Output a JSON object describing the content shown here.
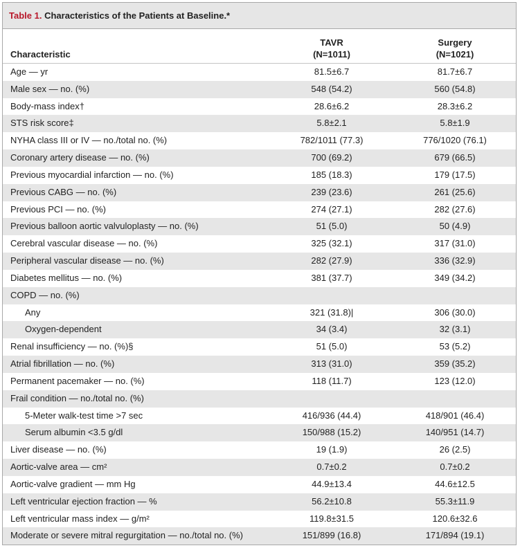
{
  "table": {
    "title_number": "Table 1.",
    "title_text": "Characteristics of the Patients at Baseline.*",
    "header": {
      "characteristic": "Characteristic",
      "tavr_label": "TAVR",
      "tavr_n": "(N=1011)",
      "surgery_label": "Surgery",
      "surgery_n": "(N=1021)"
    },
    "rows": [
      {
        "label": "Age — yr",
        "tavr": "81.5±6.7",
        "surgery": "81.7±6.7",
        "indent": false
      },
      {
        "label": "Male sex — no. (%)",
        "tavr": "548 (54.2)",
        "surgery": "560 (54.8)",
        "indent": false
      },
      {
        "label": "Body-mass index†",
        "tavr": "28.6±6.2",
        "surgery": "28.3±6.2",
        "indent": false
      },
      {
        "label": "STS risk score‡",
        "tavr": "5.8±2.1",
        "surgery": "5.8±1.9",
        "indent": false
      },
      {
        "label": "NYHA class III or IV — no./total no. (%)",
        "tavr": "782/1011 (77.3)",
        "surgery": "776/1020 (76.1)",
        "indent": false
      },
      {
        "label": "Coronary artery disease — no. (%)",
        "tavr": "700 (69.2)",
        "surgery": "679 (66.5)",
        "indent": false
      },
      {
        "label": "Previous myocardial infarction — no. (%)",
        "tavr": "185 (18.3)",
        "surgery": "179 (17.5)",
        "indent": false
      },
      {
        "label": "Previous CABG — no. (%)",
        "tavr": "239 (23.6)",
        "surgery": "261 (25.6)",
        "indent": false
      },
      {
        "label": "Previous PCI — no. (%)",
        "tavr": "274 (27.1)",
        "surgery": "282 (27.6)",
        "indent": false
      },
      {
        "label": "Previous balloon aortic valvuloplasty — no. (%)",
        "tavr": "51 (5.0)",
        "surgery": "50 (4.9)",
        "indent": false
      },
      {
        "label": "Cerebral vascular disease — no. (%)",
        "tavr": "325 (32.1)",
        "surgery": "317 (31.0)",
        "indent": false
      },
      {
        "label": "Peripheral vascular disease — no. (%)",
        "tavr": "282 (27.9)",
        "surgery": "336 (32.9)",
        "indent": false
      },
      {
        "label": "Diabetes mellitus — no. (%)",
        "tavr": "381 (37.7)",
        "surgery": "349 (34.2)",
        "indent": false
      },
      {
        "label": "COPD — no. (%)",
        "tavr": "",
        "surgery": "",
        "indent": false
      },
      {
        "label": "Any",
        "tavr": "321 (31.8)|",
        "surgery": "306 (30.0)",
        "indent": true
      },
      {
        "label": "Oxygen-dependent",
        "tavr": "34 (3.4)",
        "surgery": "32 (3.1)",
        "indent": true
      },
      {
        "label": "Renal insufficiency — no. (%)§",
        "tavr": "51 (5.0)",
        "surgery": "53 (5.2)",
        "indent": false
      },
      {
        "label": "Atrial fibrillation — no. (%)",
        "tavr": "313 (31.0)",
        "surgery": "359 (35.2)",
        "indent": false
      },
      {
        "label": "Permanent pacemaker — no. (%)",
        "tavr": "118 (11.7)",
        "surgery": "123 (12.0)",
        "indent": false
      },
      {
        "label": "Frail condition — no./total no. (%)",
        "tavr": "",
        "surgery": "",
        "indent": false
      },
      {
        "label": "5-Meter walk-test time >7 sec",
        "tavr": "416/936 (44.4)",
        "surgery": "418/901 (46.4)",
        "indent": true
      },
      {
        "label": "Serum albumin <3.5 g/dl",
        "tavr": "150/988 (15.2)",
        "surgery": "140/951 (14.7)",
        "indent": true
      },
      {
        "label": "Liver disease — no. (%)",
        "tavr": "19 (1.9)",
        "surgery": "26 (2.5)",
        "indent": false
      },
      {
        "label": "Aortic-valve area — cm²",
        "tavr": "0.7±0.2",
        "surgery": "0.7±0.2",
        "indent": false
      },
      {
        "label": "Aortic-valve gradient — mm Hg",
        "tavr": "44.9±13.4",
        "surgery": "44.6±12.5",
        "indent": false
      },
      {
        "label": "Left ventricular ejection fraction — %",
        "tavr": "56.2±10.8",
        "surgery": "55.3±11.9",
        "indent": false
      },
      {
        "label": "Left ventricular mass index — g/m²",
        "tavr": "119.8±31.5",
        "surgery": "120.6±32.6",
        "indent": false
      },
      {
        "label": "Moderate or severe mitral regurgitation — no./total no. (%)",
        "tavr": "151/899 (16.8)",
        "surgery": "171/894 (19.1)",
        "indent": false
      }
    ]
  }
}
